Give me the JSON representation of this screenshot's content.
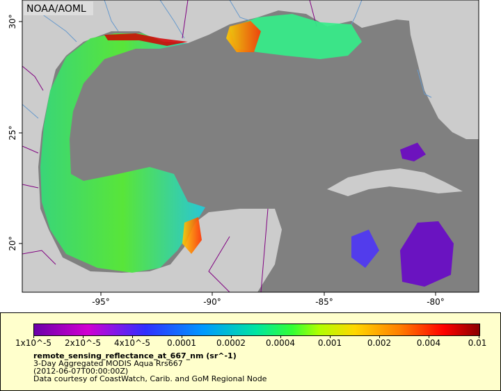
{
  "map": {
    "credit": "NOAA/AOML",
    "lon_ticks": [
      "-95°",
      "-90°",
      "-85°",
      "-80°"
    ],
    "lat_ticks": [
      "30°",
      "25°",
      "20°"
    ],
    "colors": {
      "land": "#cccccc",
      "water_nodata": "#808080",
      "border": "#800080",
      "river": "#6699cc"
    }
  },
  "legend": {
    "ticks": [
      "1x10^-5",
      "2x10^-5",
      "4x10^-5",
      "0.0001",
      "0.0002",
      "0.0004",
      "0.001",
      "0.002",
      "0.004",
      "0.01"
    ],
    "variable": "remote_sensing_reflectance_at_667_nm (sr^-1)",
    "dataset": "3-Day Aggregated MODIS Aqua Rrs667",
    "time": "(2012-06-07T00:00:00Z)",
    "courtesy": "Data courtesy of CoastWatch, Carib. and GoM Regional Node"
  }
}
